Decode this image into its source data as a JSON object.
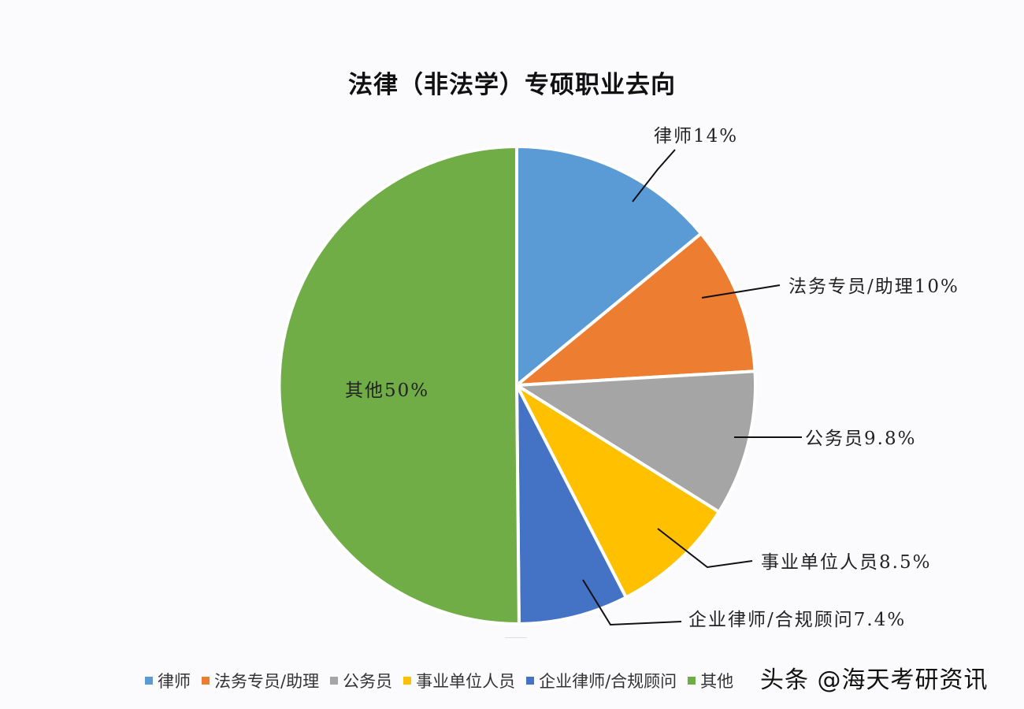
{
  "chart_data": {
    "type": "pie",
    "title": "法律（非法学）专硕职业去向",
    "categories": [
      "律师",
      "法务专员/助理",
      "公务员",
      "事业单位人员",
      "企业律师/合规顾问",
      "其他"
    ],
    "values": [
      14,
      10,
      9.8,
      8.5,
      7.4,
      50
    ],
    "unit": "%",
    "colors": [
      "#5b9bd5",
      "#ed7d31",
      "#a5a5a5",
      "#ffc000",
      "#4472c4",
      "#70ad47"
    ],
    "data_labels": [
      "律师14%",
      "法务专员/助理10%",
      "公务员9.8%",
      "事业单位人员8.5%",
      "企业律师/合规顾问7.4%",
      "其他50%"
    ],
    "start_angle_deg": 0,
    "direction": "clockwise",
    "legend_position": "bottom"
  },
  "legend": {
    "items": [
      {
        "label": "律师",
        "color": "#5b9bd5"
      },
      {
        "label": "法务专员/助理",
        "color": "#ed7d31"
      },
      {
        "label": "公务员",
        "color": "#a5a5a5"
      },
      {
        "label": "事业单位人员",
        "color": "#ffc000"
      },
      {
        "label": "企业律师/合规顾问",
        "color": "#4472c4"
      },
      {
        "label": "其他",
        "color": "#70ad47"
      }
    ]
  },
  "watermark": "头条 @海天考研资讯"
}
